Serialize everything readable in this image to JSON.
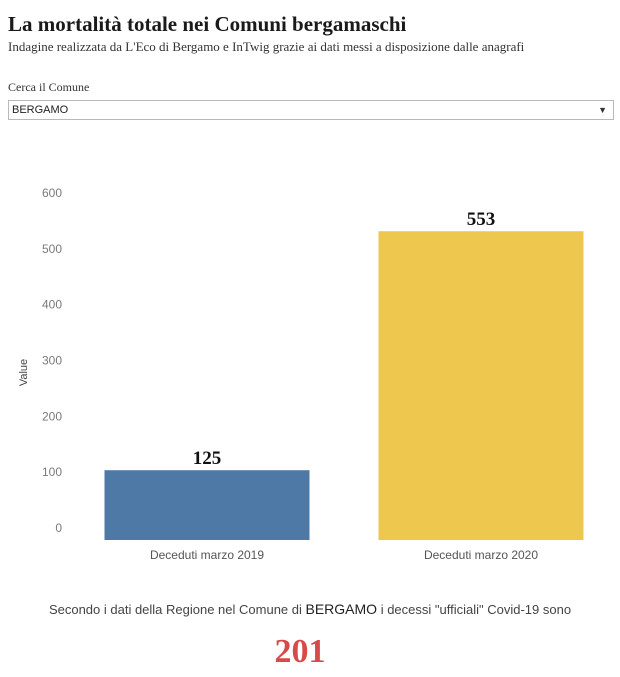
{
  "header": {
    "title": "La mortalità totale nei Comuni bergamaschi",
    "subtitle": "Indagine realizzata da L'Eco di Bergamo e InTwig grazie ai dati messi a disposizione dalle anagrafi"
  },
  "filter": {
    "label": "Cerca il Comune",
    "selected": "BERGAMO",
    "icon": "chevron-down-icon"
  },
  "chart_data": {
    "type": "bar",
    "categories": [
      "Deceduti marzo 2019",
      "Deceduti marzo 2020"
    ],
    "values": [
      125,
      553
    ],
    "data_labels": [
      "125",
      "553"
    ],
    "colors": [
      "#4e79a7",
      "#edc74e"
    ],
    "xlabel": "",
    "ylabel": "Value",
    "ylim": [
      0,
      600
    ],
    "yticks": [
      0,
      100,
      200,
      300,
      400,
      500,
      600
    ],
    "grid": false
  },
  "footer": {
    "text_before": "Secondo i dati della Regione nel Comune di ",
    "comune": "BERGAMO",
    "text_after": " i decessi \"ufficiali\" Covid-19 sono",
    "covid_deaths": "201",
    "highlight_color": "#d84a4a"
  }
}
